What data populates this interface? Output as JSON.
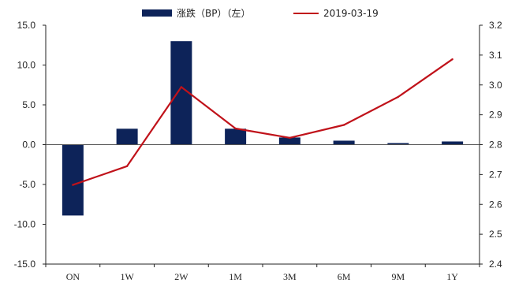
{
  "chart_data": {
    "type": "bar+line",
    "categories": [
      "ON",
      "1W",
      "2W",
      "1M",
      "3M",
      "6M",
      "9M",
      "1Y"
    ],
    "series": [
      {
        "name": "涨跌（BP）（左）",
        "type": "bar",
        "axis": "left",
        "color": "#0d2359",
        "values": [
          -8.9,
          2.0,
          13.0,
          2.0,
          0.9,
          0.5,
          0.2,
          0.4
        ]
      },
      {
        "name": "2019-03-19",
        "type": "line",
        "axis": "right",
        "color": "#c0121a",
        "values": [
          2.665,
          2.728,
          2.993,
          2.854,
          2.823,
          2.866,
          2.96,
          3.086
        ]
      }
    ],
    "y_left": {
      "range": [
        -15,
        15
      ],
      "ticks": [
        15.0,
        10.0,
        5.0,
        0.0,
        -5.0,
        -10.0,
        -15.0
      ],
      "tick_labels": [
        "15.0",
        "10.0",
        "5.0",
        "0.0",
        "-5.0",
        "-10.0",
        "-15.0"
      ]
    },
    "y_right": {
      "range": [
        2.4,
        3.2
      ],
      "ticks": [
        3.2,
        3.1,
        3.0,
        2.9,
        2.8,
        2.7,
        2.6,
        2.5,
        2.4
      ],
      "tick_labels": [
        "3.2",
        "3.1",
        "3.0",
        "2.9",
        "2.8",
        "2.7",
        "2.6",
        "2.5",
        "2.4"
      ]
    },
    "grid": false,
    "legend_position": "top-center"
  }
}
